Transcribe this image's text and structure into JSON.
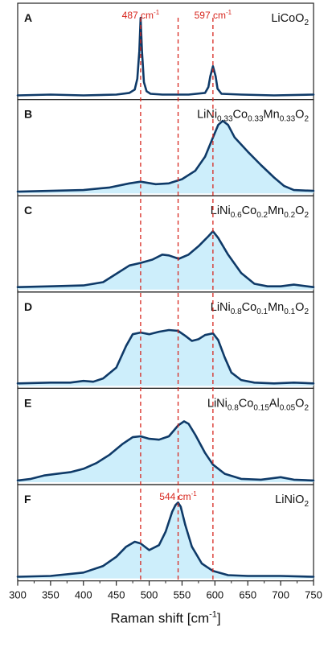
{
  "chart_data": {
    "type": "line",
    "xlabel": "Raman shift [cm",
    "xlabel_sup": "-1",
    "xlabel_close": "]",
    "xlim": [
      300,
      750
    ],
    "xticks": [
      300,
      350,
      400,
      450,
      500,
      550,
      600,
      650,
      700,
      750
    ],
    "reference_lines": [
      487,
      544,
      597
    ],
    "colors": {
      "line": "#0f3a68",
      "fill": "#cdeefb",
      "ref": "#d7261e",
      "frame": "#222222"
    },
    "annotations": [
      {
        "panel": 0,
        "x": 487,
        "text": "487 cm",
        "sup": "-1"
      },
      {
        "panel": 0,
        "x": 597,
        "text": "597 cm",
        "sup": "-1"
      },
      {
        "panel": 5,
        "x": 544,
        "text": "544 cm",
        "sup": "-1"
      }
    ],
    "panels": [
      {
        "letter": "A",
        "label": [
          [
            "t",
            "LiCoO"
          ],
          [
            "s",
            "2"
          ]
        ],
        "filled": false,
        "x": [
          300,
          350,
          400,
          450,
          470,
          478,
          482,
          485,
          487,
          489,
          492,
          496,
          502,
          520,
          560,
          585,
          590,
          593,
          597,
          601,
          604,
          610,
          640,
          690,
          750
        ],
        "y": [
          0.02,
          0.03,
          0.02,
          0.03,
          0.05,
          0.09,
          0.22,
          0.55,
          0.95,
          0.55,
          0.18,
          0.07,
          0.04,
          0.03,
          0.03,
          0.05,
          0.12,
          0.25,
          0.37,
          0.25,
          0.1,
          0.04,
          0.03,
          0.02,
          0.03
        ]
      },
      {
        "letter": "B",
        "label": [
          [
            "t",
            "LiNi"
          ],
          [
            "s",
            "0.33"
          ],
          [
            "t",
            "Co"
          ],
          [
            "s",
            "0.33"
          ],
          [
            "t",
            "Mn"
          ],
          [
            "s",
            "0.33"
          ],
          [
            "t",
            "O"
          ],
          [
            "s",
            "2"
          ]
        ],
        "filled": true,
        "x": [
          300,
          350,
          400,
          440,
          470,
          487,
          510,
          530,
          550,
          570,
          585,
          597,
          605,
          612,
          620,
          630,
          650,
          670,
          690,
          705,
          720,
          750
        ],
        "y": [
          0.02,
          0.03,
          0.04,
          0.07,
          0.12,
          0.14,
          0.11,
          0.12,
          0.17,
          0.27,
          0.44,
          0.67,
          0.82,
          0.87,
          0.82,
          0.67,
          0.5,
          0.34,
          0.19,
          0.09,
          0.04,
          0.03
        ]
      },
      {
        "letter": "C",
        "label": [
          [
            "t",
            "LiNi"
          ],
          [
            "s",
            "0.6"
          ],
          [
            "t",
            "Co"
          ],
          [
            "s",
            "0.2"
          ],
          [
            "t",
            "Mn"
          ],
          [
            "s",
            "0.2"
          ],
          [
            "t",
            "O"
          ],
          [
            "s",
            "2"
          ]
        ],
        "filled": true,
        "x": [
          300,
          350,
          400,
          430,
          450,
          470,
          487,
          505,
          520,
          530,
          545,
          560,
          575,
          590,
          597,
          605,
          620,
          640,
          660,
          680,
          700,
          720,
          750
        ],
        "y": [
          0.03,
          0.04,
          0.05,
          0.09,
          0.19,
          0.29,
          0.32,
          0.36,
          0.42,
          0.41,
          0.37,
          0.42,
          0.52,
          0.64,
          0.7,
          0.62,
          0.42,
          0.2,
          0.07,
          0.04,
          0.04,
          0.06,
          0.03
        ]
      },
      {
        "letter": "D",
        "label": [
          [
            "t",
            "LiNi"
          ],
          [
            "s",
            "0.8"
          ],
          [
            "t",
            "Co"
          ],
          [
            "s",
            "0.1"
          ],
          [
            "t",
            "Mn"
          ],
          [
            "s",
            "0.1"
          ],
          [
            "t",
            "O"
          ],
          [
            "s",
            "2"
          ]
        ],
        "filled": true,
        "x": [
          300,
          350,
          380,
          400,
          415,
          430,
          450,
          465,
          475,
          487,
          500,
          515,
          530,
          544,
          555,
          565,
          575,
          585,
          597,
          605,
          615,
          625,
          640,
          660,
          690,
          720,
          750
        ],
        "y": [
          0.03,
          0.04,
          0.04,
          0.06,
          0.05,
          0.09,
          0.22,
          0.48,
          0.62,
          0.64,
          0.62,
          0.65,
          0.67,
          0.66,
          0.6,
          0.54,
          0.56,
          0.61,
          0.63,
          0.55,
          0.34,
          0.16,
          0.07,
          0.04,
          0.03,
          0.04,
          0.03
        ]
      },
      {
        "letter": "E",
        "label": [
          [
            "t",
            "LiNi"
          ],
          [
            "s",
            "0.8"
          ],
          [
            "t",
            "Co"
          ],
          [
            "s",
            "0.15"
          ],
          [
            "t",
            "Al"
          ],
          [
            "s",
            "0.05"
          ],
          [
            "t",
            "O"
          ],
          [
            "s",
            "2"
          ]
        ],
        "filled": true,
        "x": [
          300,
          320,
          340,
          360,
          380,
          400,
          420,
          440,
          460,
          475,
          487,
          500,
          515,
          530,
          544,
          553,
          560,
          570,
          585,
          597,
          615,
          640,
          670,
          700,
          720,
          750
        ],
        "y": [
          0.02,
          0.04,
          0.08,
          0.1,
          0.12,
          0.16,
          0.23,
          0.33,
          0.46,
          0.54,
          0.55,
          0.52,
          0.51,
          0.55,
          0.68,
          0.73,
          0.7,
          0.57,
          0.35,
          0.21,
          0.1,
          0.04,
          0.03,
          0.06,
          0.03,
          0.02
        ]
      },
      {
        "letter": "F",
        "label": [
          [
            "t",
            "LiNiO"
          ],
          [
            "s",
            "2"
          ]
        ],
        "filled": true,
        "x": [
          300,
          350,
          400,
          430,
          450,
          465,
          478,
          487,
          500,
          515,
          525,
          535,
          540,
          544,
          548,
          555,
          565,
          580,
          597,
          620,
          650,
          700,
          750
        ],
        "y": [
          0.02,
          0.03,
          0.07,
          0.15,
          0.26,
          0.38,
          0.44,
          0.42,
          0.34,
          0.4,
          0.56,
          0.8,
          0.88,
          0.91,
          0.86,
          0.64,
          0.38,
          0.18,
          0.09,
          0.04,
          0.03,
          0.03,
          0.02
        ]
      }
    ]
  }
}
